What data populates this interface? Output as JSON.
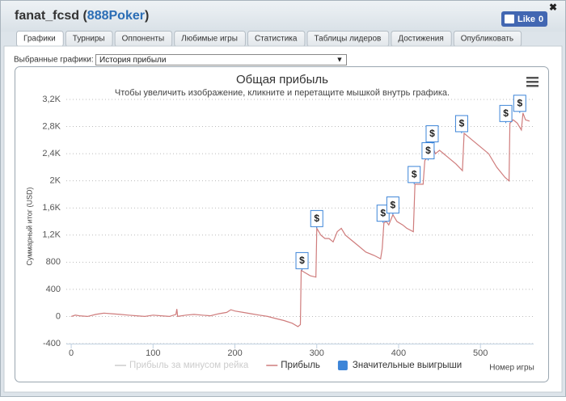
{
  "header": {
    "title_parts": [
      "fanat_fcsd (",
      "888Poker",
      ")"
    ],
    "like_label": "Like",
    "like_count": "0"
  },
  "tabs": [
    "Графики",
    "Турниры",
    "Оппоненты",
    "Любимые игры",
    "Статистика",
    "Таблицы лидеров",
    "Достижения",
    "Опубликовать"
  ],
  "active_tab": 0,
  "selector": {
    "label": "Выбранные графики:",
    "value": "История прибыли"
  },
  "chart_data": {
    "type": "line",
    "title": "Общая прибыль",
    "subtitle": "Чтобы увеличить изображение, кликните и перетащите мышкой внутрь графика.",
    "x_label": "Номер игры",
    "y_label": "Суммарный итог (USD)",
    "xlim": [
      -6,
      565
    ],
    "xticks": [
      0,
      100,
      200,
      300,
      400,
      500
    ],
    "ylim": [
      -400,
      3200
    ],
    "yticks": [
      -400,
      0,
      400,
      800,
      {
        "value": 1200,
        "label": "1,2K"
      },
      {
        "value": 1600,
        "label": "1,6K"
      },
      {
        "value": 2000,
        "label": "2K"
      },
      {
        "value": 2400,
        "label": "2,4K"
      },
      {
        "value": 2800,
        "label": "2,8K"
      },
      {
        "value": 3200,
        "label": "3,2K"
      }
    ],
    "grid": true,
    "flag_text": "$",
    "series": [
      {
        "name": "Прибыль за минусом рейка",
        "color": "#cccccc",
        "visible": false
      },
      {
        "name": "Прибыль",
        "color": "#cf7c7c",
        "x": [
          0,
          5,
          10,
          20,
          30,
          40,
          50,
          60,
          70,
          80,
          90,
          100,
          110,
          120,
          128,
          129,
          130,
          140,
          150,
          160,
          170,
          180,
          190,
          195,
          200,
          210,
          220,
          230,
          240,
          250,
          260,
          270,
          277,
          280,
          281,
          285,
          292,
          299,
          300,
          305,
          310,
          315,
          320,
          325,
          330,
          335,
          340,
          350,
          360,
          370,
          378,
          380,
          382,
          385,
          388,
          393,
          398,
          405,
          410,
          418,
          420,
          425,
          430,
          432,
          436,
          440,
          445,
          450,
          455,
          460,
          470,
          478,
          480,
          485,
          490,
          500,
          510,
          520,
          530,
          535,
          536,
          540,
          545,
          550,
          552,
          555,
          560
        ],
        "values": [
          0,
          20,
          10,
          0,
          30,
          50,
          40,
          30,
          20,
          10,
          0,
          20,
          10,
          0,
          30,
          110,
          0,
          20,
          30,
          20,
          10,
          40,
          60,
          100,
          80,
          60,
          40,
          20,
          0,
          -30,
          -60,
          -100,
          -150,
          -120,
          680,
          650,
          600,
          580,
          1300,
          1200,
          1150,
          1150,
          1100,
          1250,
          1300,
          1200,
          1150,
          1050,
          950,
          900,
          850,
          1000,
          1380,
          1400,
          1350,
          1500,
          1400,
          1350,
          1300,
          1250,
          1950,
          1950,
          1950,
          2300,
          2350,
          2550,
          2400,
          2450,
          2400,
          2350,
          2250,
          2150,
          2700,
          2650,
          2600,
          2500,
          2400,
          2200,
          2050,
          2000,
          2850,
          2900,
          2850,
          2750,
          3000,
          2900,
          2880
        ]
      },
      {
        "name": "Значительные выигрыши",
        "color": "#3d85d8",
        "x": [
          282,
          300,
          381,
          393,
          419,
          436,
          441,
          477,
          531,
          548
        ],
        "values": [
          680,
          1300,
          1380,
          1500,
          1950,
          2300,
          2550,
          2700,
          2850,
          3000
        ]
      }
    ]
  }
}
